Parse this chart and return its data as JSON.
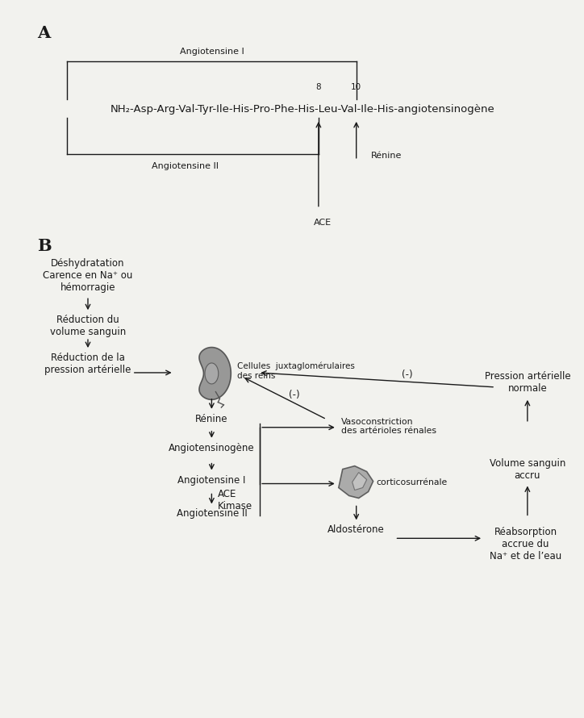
{
  "bg_color": "#f2f2ee",
  "text_color": "#1a1a1a",
  "fig_width": 7.24,
  "fig_height": 8.9,
  "section_A_label": "A",
  "section_B_label": "B",
  "sequence_text": "NH₂-Asp-Arg-Val-Tyr-Ile-His-Pro-Phe-His-Leu-Val-Ile-His-angiotensinogène",
  "angiotensine_I_label": "Angiotensine I",
  "angiotensine_II_label": "Angiotensine II",
  "renine_label_A": "Rénine",
  "ACE_label": "ACE",
  "num8": "8",
  "num10": "10",
  "B_deshydratation": "Déshydratation\nCarence en Na⁺ ou\nhémorragie",
  "B_reduction_volume": "Réduction du\nvolume sanguin",
  "B_reduction_pression": "Réduction de la\npression artérielle",
  "B_cellules_juxta": "Cellules  juxtaglomérulaires\ndes reins",
  "B_renine": "Rénine",
  "B_angiotensinogene": "Angiotensinogène",
  "B_angiotensine_I": "Angiotensine I",
  "B_ACE_Kimase": "ACE\nKimase",
  "B_angiotensine_II": "Angiotensine II",
  "B_vasoconstriction": "Vasoconstriction\ndes artérioles rénales",
  "B_corticosurrenale": "corticosurrénale",
  "B_aldosterone": "Aldostérone",
  "B_reabsorption": "Réabsorption\naccrue du\nNa⁺ et de l’eau",
  "B_volume_sanguin": "Volume sanguin\naccru",
  "B_pression_arterielle": "Pression artérielle\nnormale",
  "B_neg1": "(-)",
  "B_neg2": "(-)"
}
